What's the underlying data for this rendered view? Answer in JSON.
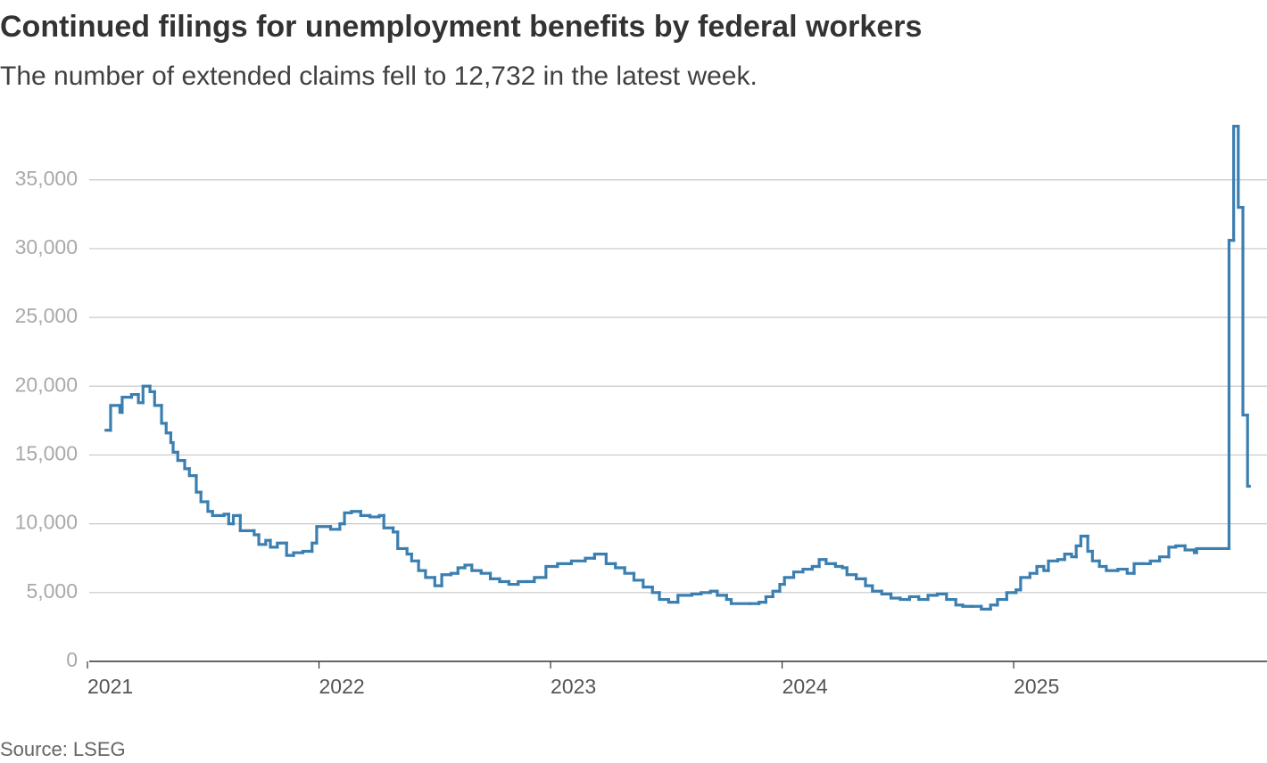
{
  "chart_data": {
    "type": "line",
    "step": "post",
    "title": "Continued filings for unemployment benefits by federal workers",
    "subtitle": "The number of extended claims fell to 12,732 in the latest week.",
    "source": "Source: LSEG",
    "color": "#3b7fb1",
    "grid": true,
    "xlim": [
      2021,
      2026.094
    ],
    "xticks": [
      2021,
      2022,
      2023,
      2024,
      2025
    ],
    "ylim": [
      0,
      39000
    ],
    "yticks": [
      0,
      {
        "value": 5000,
        "label": "5,000"
      },
      {
        "value": 10000,
        "label": "10,000"
      },
      {
        "value": 15000,
        "label": "15,000"
      },
      {
        "value": 20000,
        "label": "20,000"
      },
      {
        "value": 25000,
        "label": "25,000"
      },
      {
        "value": 30000,
        "label": "30,000"
      },
      {
        "value": 35000,
        "label": "35,000"
      }
    ],
    "x": [
      2021.08,
      2021.1,
      2021.14,
      2021.15,
      2021.19,
      2021.22,
      2021.24,
      2021.27,
      2021.29,
      2021.32,
      2021.34,
      2021.36,
      2021.37,
      2021.39,
      2021.42,
      2021.44,
      2021.47,
      2021.49,
      2021.52,
      2021.54,
      2021.59,
      2021.61,
      2021.63,
      2021.66,
      2021.72,
      2021.74,
      2021.77,
      2021.79,
      2021.82,
      2021.86,
      2021.89,
      2021.93,
      2021.97,
      2021.99,
      2022.05,
      2022.09,
      2022.11,
      2022.14,
      2022.18,
      2022.22,
      2022.26,
      2022.28,
      2022.32,
      2022.34,
      2022.38,
      2022.4,
      2022.43,
      2022.46,
      2022.5,
      2022.53,
      2022.57,
      2022.6,
      2022.63,
      2022.66,
      2022.7,
      2022.74,
      2022.78,
      2022.82,
      2022.86,
      2022.9,
      2022.93,
      2022.98,
      2023.03,
      2023.09,
      2023.15,
      2023.19,
      2023.24,
      2023.28,
      2023.32,
      2023.36,
      2023.4,
      2023.44,
      2023.47,
      2023.51,
      2023.55,
      2023.61,
      2023.65,
      2023.69,
      2023.72,
      2023.76,
      2023.78,
      2023.86,
      2023.9,
      2023.93,
      2023.96,
      2023.99,
      2024.01,
      2024.05,
      2024.09,
      2024.13,
      2024.16,
      2024.19,
      2024.23,
      2024.26,
      2024.28,
      2024.32,
      2024.36,
      2024.39,
      2024.43,
      2024.47,
      2024.51,
      2024.55,
      2024.59,
      2024.63,
      2024.67,
      2024.71,
      2024.75,
      2024.78,
      2024.82,
      2024.86,
      2024.9,
      2024.93,
      2024.97,
      2025.01,
      2025.03,
      2025.07,
      2025.1,
      2025.13,
      2025.15,
      2025.19,
      2025.22,
      2025.25,
      2025.27,
      2025.29,
      2025.32,
      2025.34,
      2025.37,
      2025.4,
      2025.45,
      2025.49,
      2025.52,
      2025.56,
      2025.59,
      2025.63,
      2025.67,
      2025.7,
      2025.74,
      2025.78,
      2025.79,
      2025.93,
      2025.95,
      2025.97,
      2025.99,
      2026.01
    ],
    "values": [
      16800,
      18600,
      18100,
      19200,
      19400,
      18800,
      20000,
      19600,
      18600,
      17300,
      16600,
      15900,
      15200,
      14600,
      14000,
      13500,
      12300,
      11600,
      10900,
      10600,
      10700,
      10000,
      10600,
      9500,
      9200,
      8500,
      8800,
      8300,
      8600,
      7700,
      7900,
      8000,
      8600,
      9800,
      9600,
      10000,
      10800,
      10900,
      10600,
      10500,
      10600,
      9700,
      9400,
      8200,
      7800,
      7300,
      6600,
      6100,
      5500,
      6300,
      6400,
      6800,
      7000,
      6600,
      6400,
      6000,
      5800,
      5600,
      5800,
      5800,
      6100,
      6900,
      7100,
      7300,
      7500,
      7800,
      7100,
      6800,
      6400,
      5900,
      5400,
      5000,
      4500,
      4300,
      4800,
      4900,
      5000,
      5100,
      4800,
      4500,
      4200,
      4200,
      4300,
      4700,
      5100,
      5600,
      6100,
      6500,
      6700,
      6900,
      7400,
      7100,
      6900,
      6800,
      6300,
      6000,
      5500,
      5100,
      4900,
      4600,
      4500,
      4700,
      4500,
      4800,
      4900,
      4500,
      4100,
      4000,
      4000,
      3800,
      4100,
      4500,
      5000,
      5200,
      6100,
      6400,
      6900,
      6600,
      7300,
      7400,
      7800,
      7600,
      8400,
      9100,
      8000,
      7300,
      6900,
      6600,
      6700,
      6400,
      7100,
      7100,
      7300,
      7600,
      8300,
      8400,
      8100,
      7900,
      8200,
      30600,
      38900,
      33000,
      17900,
      12732
    ]
  }
}
